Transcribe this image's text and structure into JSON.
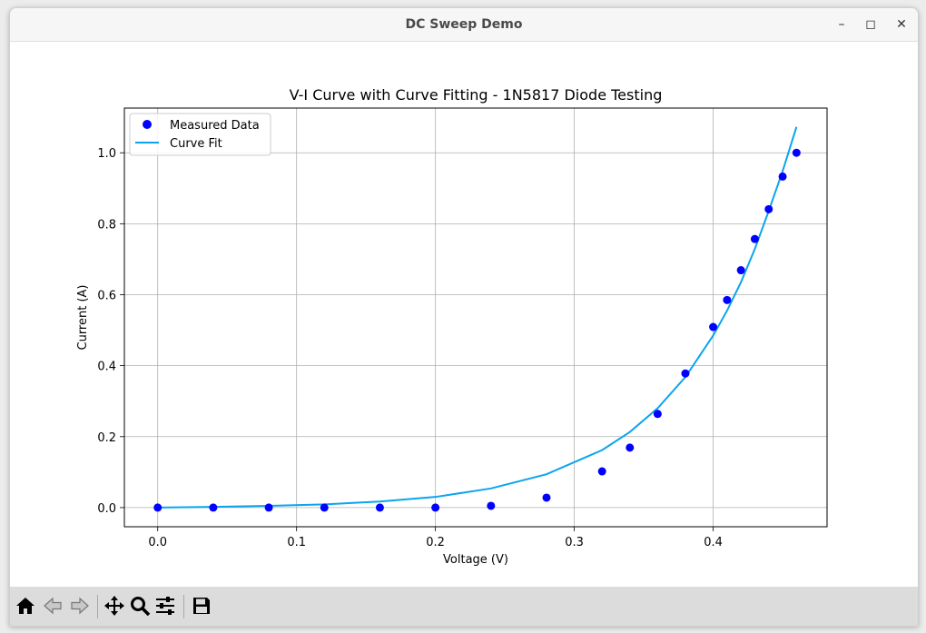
{
  "window": {
    "title": "DC Sweep Demo"
  },
  "toolbar": {
    "buttons": [
      "home-icon",
      "back-icon",
      "forward-icon",
      "pan-icon",
      "zoom-icon",
      "configure-icon",
      "save-icon"
    ]
  },
  "colors": {
    "measured": "#0000ff",
    "fit": "#0aa5ee",
    "grid": "#b0b0b0"
  },
  "chart_data": {
    "type": "scatter",
    "title": "V-I Curve with Curve Fitting - 1N5817 Diode Testing",
    "xlabel": "Voltage (V)",
    "ylabel": "Current (A)",
    "xlim": [
      -0.024,
      0.482
    ],
    "ylim": [
      -0.054,
      1.126
    ],
    "xticks": [
      0.0,
      0.1,
      0.2,
      0.3,
      0.4
    ],
    "xtick_labels": [
      "0.0",
      "0.1",
      "0.2",
      "0.3",
      "0.4"
    ],
    "yticks": [
      0.0,
      0.2,
      0.4,
      0.6,
      0.8,
      1.0
    ],
    "ytick_labels": [
      "0.0",
      "0.2",
      "0.4",
      "0.6",
      "0.8",
      "1.0"
    ],
    "grid": true,
    "legend": {
      "position": "upper-left",
      "entries": [
        "Measured Data",
        "Curve Fit"
      ]
    },
    "series": [
      {
        "name": "Measured Data",
        "kind": "scatter",
        "x": [
          0.0,
          0.04,
          0.08,
          0.12,
          0.16,
          0.2,
          0.24,
          0.28,
          0.32,
          0.34,
          0.36,
          0.38,
          0.4,
          0.41,
          0.42,
          0.43,
          0.44,
          0.45,
          0.46
        ],
        "y": [
          0.0,
          0.0,
          0.0,
          0.0,
          0.0,
          0.0,
          0.005,
          0.028,
          0.102,
          0.169,
          0.264,
          0.378,
          0.509,
          0.585,
          0.669,
          0.757,
          0.841,
          0.933,
          1.0
        ]
      },
      {
        "name": "Curve Fit",
        "kind": "line",
        "x": [
          0.0,
          0.04,
          0.08,
          0.12,
          0.16,
          0.2,
          0.24,
          0.28,
          0.32,
          0.34,
          0.36,
          0.38,
          0.4,
          0.41,
          0.42,
          0.43,
          0.44,
          0.45,
          0.46
        ],
        "y": [
          0.0,
          0.002,
          0.005,
          0.009,
          0.017,
          0.03,
          0.054,
          0.094,
          0.162,
          0.213,
          0.28,
          0.368,
          0.485,
          0.555,
          0.635,
          0.729,
          0.836,
          0.948,
          1.073
        ]
      }
    ]
  }
}
